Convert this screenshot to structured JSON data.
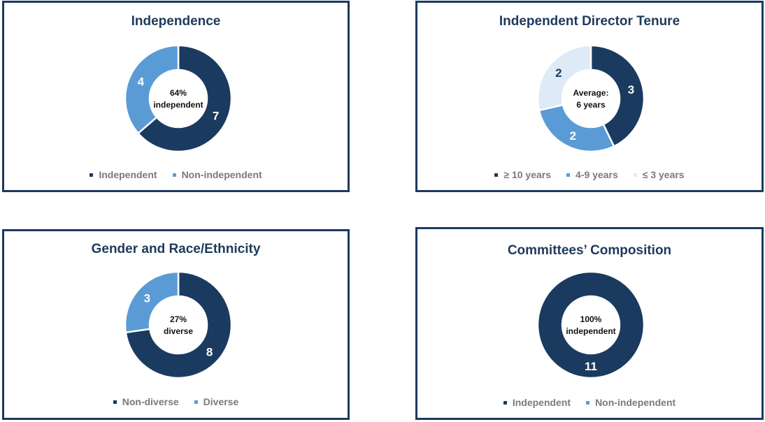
{
  "chart_data": [
    {
      "type": "pie",
      "title": "Independence",
      "center_lines": [
        "64%",
        "independent"
      ],
      "series": [
        {
          "name": "Independent",
          "value": 7,
          "color": "#1b3a5f",
          "label_color": "#ffffff"
        },
        {
          "name": "Non-independent",
          "value": 4,
          "color": "#5b9bd5",
          "label_color": "#ffffff"
        }
      ]
    },
    {
      "type": "pie",
      "title": "Independent Director Tenure",
      "center_lines": [
        "Average:",
        "6 years"
      ],
      "series": [
        {
          "name": "≥ 10 years",
          "value": 3,
          "color": "#1b3a5f",
          "label_color": "#ffffff"
        },
        {
          "name": "4-9 years",
          "value": 2,
          "color": "#5b9bd5",
          "label_color": "#ffffff"
        },
        {
          "name": "≤ 3 years",
          "value": 2,
          "color": "#deebf7",
          "label_color": "#1b3a5f"
        }
      ]
    },
    {
      "type": "pie",
      "title": "Gender and Race/Ethnicity",
      "center_lines": [
        "27%",
        "diverse"
      ],
      "series": [
        {
          "name": "Non-diverse",
          "value": 8,
          "color": "#1b3a5f",
          "label_color": "#ffffff"
        },
        {
          "name": "Diverse",
          "value": 3,
          "color": "#5b9bd5",
          "label_color": "#ffffff"
        }
      ]
    },
    {
      "type": "pie",
      "title": "Committees’ Composition",
      "center_lines": [
        "100%",
        "independent"
      ],
      "series": [
        {
          "name": "Independent",
          "value": 11,
          "color": "#1b3a5f",
          "label_color": "#ffffff"
        },
        {
          "name": "Non-independent",
          "value": 0,
          "color": "#5b9bd5",
          "label_color": "#ffffff"
        }
      ]
    }
  ]
}
